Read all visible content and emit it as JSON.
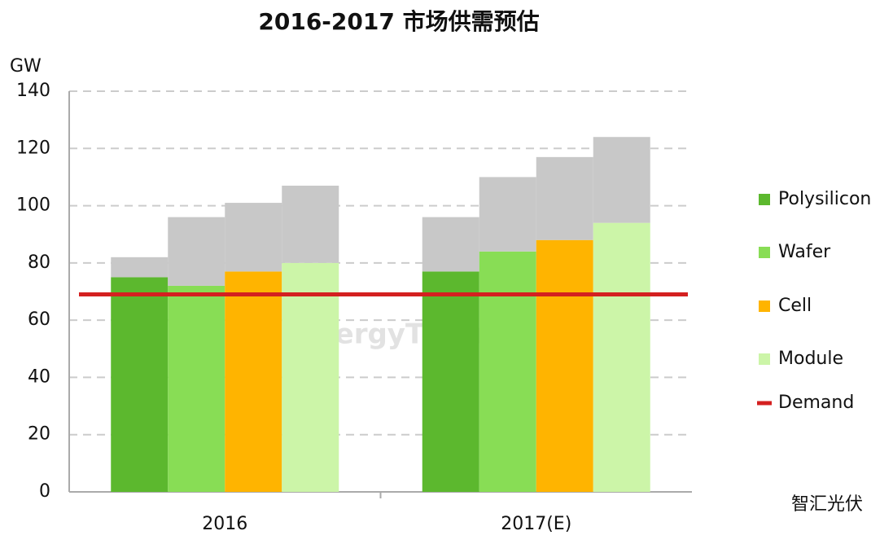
{
  "chart_data": {
    "type": "bar",
    "title": "2016-2017 市场供需预估",
    "y_label": "GW",
    "categories": [
      "2016",
      "2017(E)"
    ],
    "series": [
      {
        "name": "Polysilicon",
        "color": "#5cb82e",
        "values": [
          75,
          77
        ],
        "extra_values": [
          7,
          19
        ]
      },
      {
        "name": "Wafer",
        "color": "#88dd55",
        "values": [
          72,
          84
        ],
        "extra_values": [
          24,
          26
        ]
      },
      {
        "name": "Cell",
        "color": "#ffb400",
        "values": [
          77,
          88
        ],
        "extra_values": [
          24,
          29
        ]
      },
      {
        "name": "Module",
        "color": "#ccf5a8",
        "values": [
          80,
          94
        ],
        "extra_values": [
          27,
          30
        ]
      }
    ],
    "extra_color": "#c8c8c8",
    "demand": {
      "name": "Demand",
      "value": 69,
      "color": "#d42020"
    },
    "ylim": [
      0,
      140
    ],
    "yticks": [
      0,
      20,
      40,
      60,
      80,
      100,
      120,
      140
    ],
    "grid": true,
    "annotations": [
      "EnergyTrend",
      "智汇光伏"
    ]
  }
}
